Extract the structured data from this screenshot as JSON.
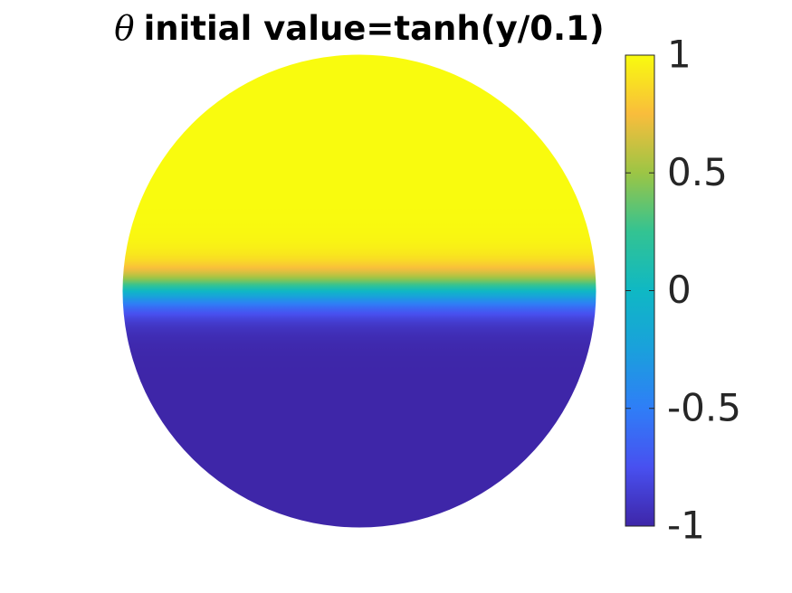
{
  "chart_data": {
    "type": "disk-field",
    "title_symbol": "θ",
    "title": "initial value=tanh(y/0.1)",
    "colormap": "parula",
    "clim": [
      -1,
      1
    ],
    "cticks": [
      {
        "value": 1,
        "label": "1"
      },
      {
        "value": 0.5,
        "label": "0.5"
      },
      {
        "value": 0,
        "label": "0"
      },
      {
        "value": -0.5,
        "label": "-0.5"
      },
      {
        "value": -1,
        "label": "-1"
      }
    ]
  }
}
